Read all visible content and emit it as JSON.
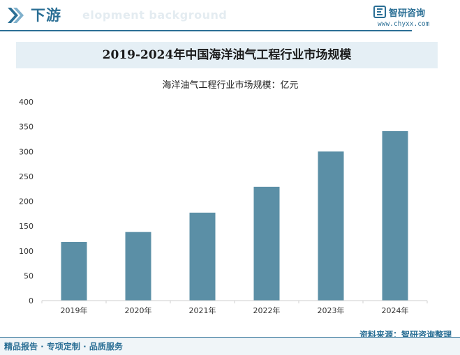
{
  "header": {
    "title": "下游",
    "ghost_text": "elopment background"
  },
  "brand": {
    "name": "智研咨询",
    "url": "www.chyxx.com"
  },
  "chart_data": {
    "type": "bar",
    "title": "2019-2024年中国海洋油气工程行业市场规模",
    "subtitle": "海洋油气工程行业市场规模：亿元",
    "categories": [
      "2019年",
      "2020年",
      "2021年",
      "2022年",
      "2023年",
      "2024年"
    ],
    "values": [
      118,
      138,
      177,
      229,
      300,
      341
    ],
    "ylim": [
      0,
      400
    ],
    "yticks": [
      0,
      50,
      100,
      150,
      200,
      250,
      300,
      350,
      400
    ],
    "bar_color": "#5b8fa6",
    "grid": false
  },
  "source": "资料来源：智研咨询整理",
  "footer": {
    "text": "精品报告 · 专项定制 · 品质服务"
  }
}
